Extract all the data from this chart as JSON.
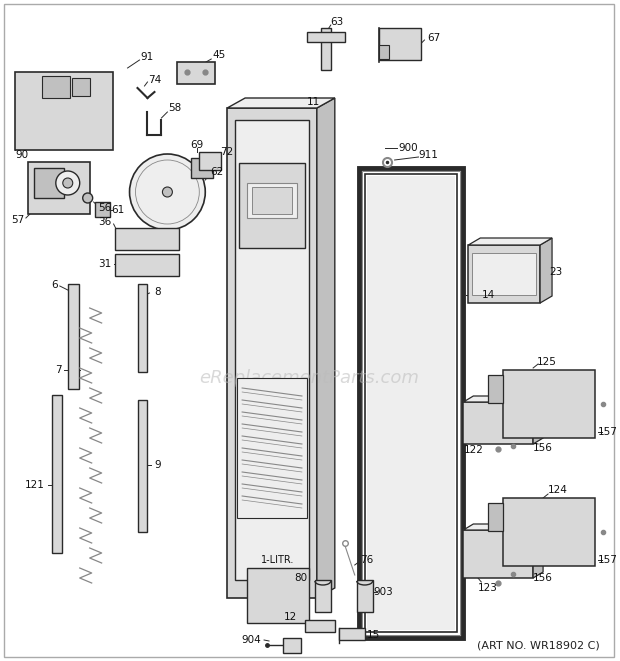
{
  "subtitle": "(ART NO. WR18902 C)",
  "watermark": "eReplacementParts.com",
  "bg_color": "#ffffff",
  "lc": "#2a2a2a",
  "gc": "#888888",
  "fc_dark": "#c0c0c0",
  "fc_mid": "#d8d8d8",
  "fc_light": "#eeeeee"
}
